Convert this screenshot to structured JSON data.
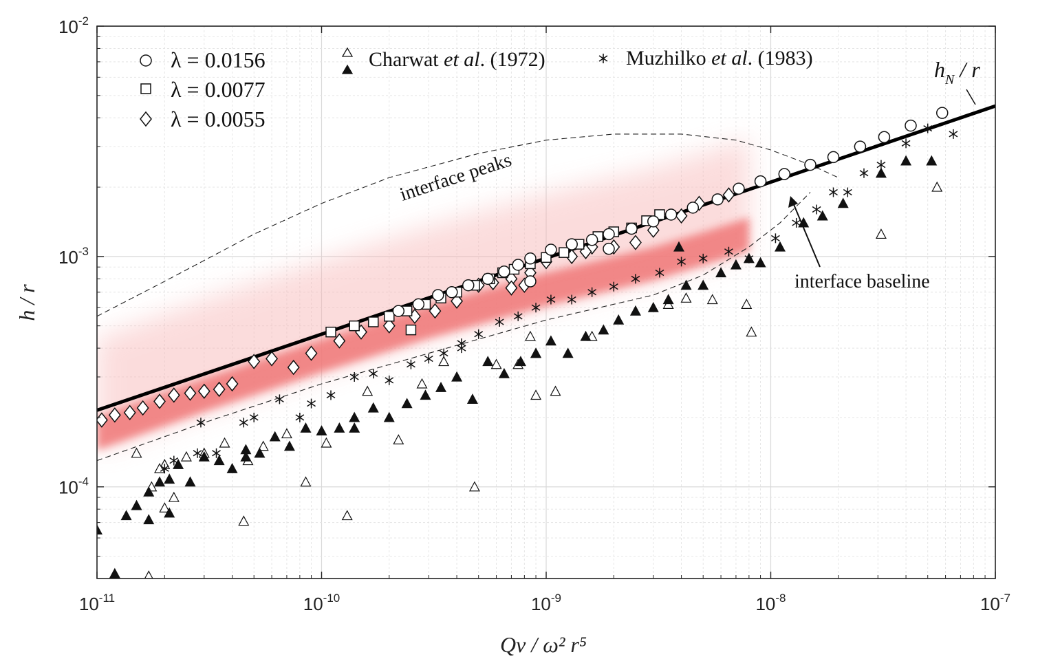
{
  "chart_data": {
    "type": "scatter",
    "xscale": "log",
    "yscale": "log",
    "xlim": [
      1e-11,
      1e-07
    ],
    "ylim": [
      4e-05,
      0.01
    ],
    "grid": true,
    "xlabel": "Qν / ω² r⁵",
    "ylabel": "h / r",
    "x_ticks": [
      {
        "mant": "10",
        "exp": "-11"
      },
      {
        "mant": "10",
        "exp": "-10"
      },
      {
        "mant": "10",
        "exp": "-9"
      },
      {
        "mant": "10",
        "exp": "-8"
      },
      {
        "mant": "10",
        "exp": "-7"
      }
    ],
    "y_ticks": [
      {
        "mant": "10",
        "exp": "-4"
      },
      {
        "mant": "10",
        "exp": "-3"
      },
      {
        "mant": "10",
        "exp": "-2"
      }
    ],
    "legend_placement": "top",
    "legend": {
      "lambda1": "λ = 0.0156",
      "lambda2": "λ = 0.0077",
      "lambda3": "λ = 0.0055",
      "charwat_name": "Charwat",
      "charwat_etal": "et al",
      "charwat_year": ". (1972)",
      "muzhilko_name": "Muzhilko",
      "muzhilko_etal": "et al",
      "muzhilko_year": ". (1983)"
    },
    "annotations": {
      "peaks": "interface peaks",
      "baseline": "interface baseline",
      "hn_h": "h",
      "hn_sub": "N",
      "hn_r": " / r"
    },
    "line_hN": {
      "name": "h_N / r",
      "x": [
        1e-11,
        1e-07
      ],
      "y": [
        0.000215,
        0.0045
      ]
    },
    "curve_peaks": {
      "x": [
        1e-11,
        2e-11,
        5e-11,
        1e-10,
        2e-10,
        5e-10,
        1e-09,
        2e-09,
        4e-09,
        7e-09,
        1e-08,
        1.5e-08,
        2e-08
      ],
      "y": [
        0.00055,
        0.00078,
        0.00125,
        0.0017,
        0.0022,
        0.0028,
        0.0032,
        0.0034,
        0.0034,
        0.0032,
        0.0029,
        0.0025,
        0.0022
      ]
    },
    "curve_baseline": {
      "x": [
        1e-11,
        3e-11,
        1e-10,
        3e-10,
        1e-09,
        3e-09,
        5e-09,
        8e-09,
        1.1e-08,
        1.5e-08
      ],
      "y": [
        0.00013,
        0.00019,
        0.00028,
        0.00038,
        0.00053,
        0.00068,
        0.00083,
        0.0011,
        0.0014,
        0.0019
      ]
    },
    "red_band": {
      "x": [
        1e-11,
        3e-11,
        1e-10,
        3e-10,
        1e-09,
        3e-09,
        5e-09,
        8e-09
      ],
      "y_center": [
        0.00017,
        0.00025,
        0.00037,
        0.00052,
        0.00072,
        0.00093,
        0.00108,
        0.00125
      ]
    },
    "series": [
      {
        "name": "λ = 0.0156",
        "marker": "circle",
        "x": [
          2.2e-10,
          2.7e-10,
          3.3e-10,
          3.8e-10,
          4.5e-10,
          5.5e-10,
          6.5e-10,
          7.5e-10,
          8.5e-10,
          1.05e-09,
          1.3e-09,
          1.6e-09,
          1.9e-09,
          2.4e-09,
          3e-09,
          3.6e-09,
          4.5e-09,
          5.8e-09,
          7.2e-09,
          9e-09,
          1.15e-08,
          1.5e-08,
          1.9e-08,
          2.5e-08,
          3.2e-08,
          4.2e-08,
          5.8e-08,
          8.5e-10,
          1.9e-09
        ],
        "y": [
          0.00058,
          0.00062,
          0.00068,
          0.0007,
          0.00075,
          0.0008,
          0.00086,
          0.00092,
          0.00098,
          0.00107,
          0.00113,
          0.00118,
          0.00125,
          0.00132,
          0.00142,
          0.00152,
          0.00163,
          0.00177,
          0.00197,
          0.00212,
          0.00228,
          0.0025,
          0.0027,
          0.003,
          0.0033,
          0.0037,
          0.0042,
          0.00078,
          0.00108
        ]
      },
      {
        "name": "λ = 0.0077",
        "marker": "square",
        "x": [
          1.1e-10,
          1.4e-10,
          1.7e-10,
          2e-10,
          2.4e-10,
          2.9e-10,
          3.4e-10,
          4e-10,
          4.8e-10,
          5.6e-10,
          6.4e-10,
          7.2e-10,
          8.5e-10,
          1e-09,
          1.2e-09,
          1.4e-09,
          1.7e-09,
          2e-09,
          2.4e-09,
          2.8e-09,
          3.2e-09,
          2.5e-10
        ],
        "y": [
          0.00047,
          0.0005,
          0.00052,
          0.00055,
          0.00058,
          0.00062,
          0.00066,
          0.0007,
          0.00075,
          0.0008,
          0.00085,
          0.00088,
          0.00093,
          0.00099,
          0.00104,
          0.00113,
          0.00122,
          0.00128,
          0.00133,
          0.00143,
          0.00152,
          0.00048
        ]
      },
      {
        "name": "λ = 0.0055",
        "marker": "diamond",
        "x": [
          1.05e-11,
          1.2e-11,
          1.4e-11,
          1.6e-11,
          1.9e-11,
          2.2e-11,
          2.6e-11,
          3e-11,
          3.5e-11,
          4e-11,
          5e-11,
          6e-11,
          7.5e-11,
          9e-11,
          1.2e-10,
          1.5e-10,
          2e-10,
          2.6e-10,
          3.2e-10,
          4e-10,
          5e-10,
          5.8e-10,
          7e-10,
          8.5e-10,
          1e-09,
          1.3e-09,
          1.6e-09,
          2e-09,
          2.5e-09,
          3e-09,
          4e-09,
          4.8e-09,
          6.5e-09,
          8e-10,
          1.5e-09,
          7e-10
        ],
        "y": [
          0.000195,
          0.000205,
          0.00021,
          0.00022,
          0.000235,
          0.00025,
          0.000255,
          0.00026,
          0.000265,
          0.00028,
          0.00035,
          0.00036,
          0.00033,
          0.00038,
          0.00043,
          0.00047,
          0.0005,
          0.00055,
          0.00058,
          0.00064,
          0.00075,
          0.00077,
          0.0008,
          0.00085,
          0.00095,
          0.001,
          0.0011,
          0.0011,
          0.00115,
          0.0013,
          0.0015,
          0.0017,
          0.00185,
          0.00075,
          0.00105,
          0.00073
        ]
      },
      {
        "name": "Charwat et al. (1972) open",
        "marker": "triangle-open",
        "x": [
          1.2e-11,
          1.5e-11,
          1.75e-11,
          2e-11,
          2.2e-11,
          2.5e-11,
          3e-11,
          3.7e-11,
          4.5e-11,
          5.5e-11,
          7e-11,
          8.5e-11,
          1.05e-10,
          1.3e-10,
          1.6e-10,
          2.2e-10,
          2.8e-10,
          3.5e-10,
          4.8e-10,
          6e-10,
          7.5e-10,
          8.5e-10,
          1.1e-09,
          1.6e-09,
          3.5e-09,
          4.2e-09,
          5.5e-09,
          7.8e-09,
          8.2e-09,
          3.1e-08,
          5.5e-08,
          2e-11,
          4.7e-11,
          1.7e-11,
          9e-10,
          1.9e-11
        ],
        "y": [
          3.8e-05,
          0.00014,
          0.0001,
          0.000125,
          9e-05,
          0.000135,
          0.00014,
          0.000155,
          7.1e-05,
          0.00015,
          0.00017,
          0.000105,
          0.000155,
          7.5e-05,
          0.00026,
          0.00016,
          0.00028,
          0.00035,
          0.0001,
          0.00034,
          0.00034,
          0.00045,
          0.00026,
          0.00045,
          0.00062,
          0.00066,
          0.00065,
          0.00062,
          0.00047,
          0.00125,
          0.002,
          8.1e-05,
          0.00013,
          4.1e-05,
          0.00025,
          0.00012
        ]
      },
      {
        "name": "Charwat et al. (1972) filled",
        "marker": "triangle-filled",
        "x": [
          1e-11,
          1.2e-11,
          1.35e-11,
          1.5e-11,
          1.7e-11,
          1.9e-11,
          2.1e-11,
          2.3e-11,
          2.6e-11,
          3e-11,
          3.5e-11,
          4e-11,
          4.6e-11,
          5.3e-11,
          6.2e-11,
          7.2e-11,
          8.5e-11,
          1e-10,
          1.2e-10,
          1.4e-10,
          1.7e-10,
          2e-10,
          2.4e-10,
          2.9e-10,
          3.4e-10,
          4e-10,
          4.7e-10,
          5.5e-10,
          6.5e-10,
          7.7e-10,
          9e-10,
          1.05e-09,
          1.25e-09,
          1.5e-09,
          1.8e-09,
          2.1e-09,
          2.5e-09,
          3e-09,
          3.5e-09,
          4.2e-09,
          5e-09,
          6e-09,
          7e-09,
          8e-09,
          9e-09,
          1.1e-08,
          1.4e-08,
          1.7e-08,
          2.1e-08,
          3.1e-08,
          4e-08,
          5.2e-08,
          1.7e-11,
          2.1e-11,
          4.6e-11,
          9e-10,
          3.9e-09,
          1.4e-10
        ],
        "y": [
          6.5e-05,
          4.2e-05,
          7.5e-05,
          8.3e-05,
          7.2e-05,
          0.000105,
          7.7e-05,
          0.000125,
          0.000105,
          0.000135,
          0.00013,
          0.00012,
          0.000145,
          0.00014,
          0.000165,
          0.00015,
          0.00018,
          0.000175,
          0.00018,
          0.0002,
          0.00022,
          0.0002,
          0.00023,
          0.00025,
          0.00027,
          0.0003,
          0.00024,
          0.00035,
          0.00031,
          0.00035,
          0.00038,
          0.00043,
          0.00038,
          0.00045,
          0.00048,
          0.00053,
          0.00058,
          0.0006,
          0.00065,
          0.00075,
          0.00075,
          0.00085,
          0.00092,
          0.00098,
          0.00094,
          0.0011,
          0.0014,
          0.0015,
          0.0017,
          0.0023,
          0.0026,
          0.0026,
          9.5e-05,
          0.000108,
          0.000135,
          0.00038,
          0.0011,
          0.00018
        ]
      },
      {
        "name": "Muzhilko et al. (1983)",
        "marker": "asterisk",
        "x": [
          2e-11,
          2.2e-11,
          2.9e-11,
          3.4e-11,
          4.5e-11,
          5e-11,
          6.5e-11,
          8e-11,
          9e-11,
          1.1e-10,
          1.4e-10,
          1.7e-10,
          2e-10,
          2.5e-10,
          3e-10,
          3.5e-10,
          4.2e-10,
          5e-10,
          6.2e-10,
          7.5e-10,
          9e-10,
          1.05e-09,
          1.3e-09,
          1.6e-09,
          2e-09,
          2.5e-09,
          3.2e-09,
          4e-09,
          5e-09,
          6.5e-09,
          8e-09,
          1.05e-08,
          1.3e-08,
          1.6e-08,
          1.9e-08,
          2.2e-08,
          2.6e-08,
          3.1e-08,
          4e-08,
          5e-08,
          6.5e-08,
          2.8e-11,
          4.2e-10
        ],
        "y": [
          0.00012,
          0.00013,
          0.00019,
          0.00014,
          0.00019,
          0.0002,
          0.00024,
          0.0002,
          0.00023,
          0.00025,
          0.0003,
          0.00031,
          0.00029,
          0.00034,
          0.00036,
          0.00038,
          0.0004,
          0.00046,
          0.00052,
          0.00055,
          0.0006,
          0.00065,
          0.00065,
          0.0007,
          0.00074,
          0.0008,
          0.00085,
          0.00095,
          0.00098,
          0.00105,
          0.00098,
          0.0012,
          0.0014,
          0.0016,
          0.0019,
          0.0019,
          0.0023,
          0.0025,
          0.0031,
          0.0036,
          0.0034,
          0.00014,
          0.00042
        ]
      }
    ]
  }
}
